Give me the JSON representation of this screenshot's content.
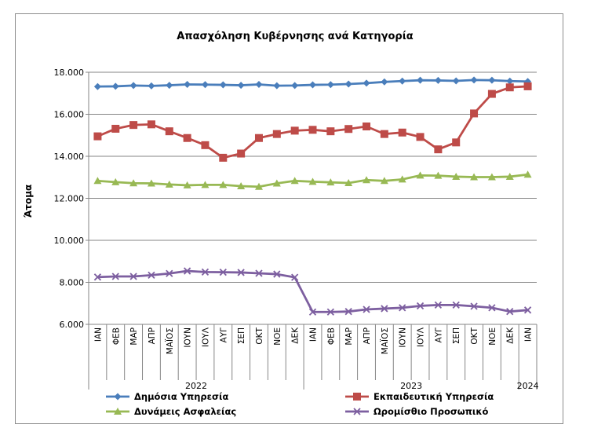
{
  "chart_data": {
    "type": "line",
    "title": "Απασχόληση Κυβέρνησης ανά Κατηγορία",
    "ylabel": "Άτομα",
    "xlabel": "",
    "ylim": [
      6000,
      18000
    ],
    "yticks": [
      6000,
      8000,
      10000,
      12000,
      14000,
      16000,
      18000
    ],
    "ytick_labels": [
      "6.000",
      "8.000",
      "10.000",
      "12.000",
      "14.000",
      "16.000",
      "18.000"
    ],
    "categories": [
      "ΙΑΝ",
      "ΦΕΒ",
      "ΜΑΡ",
      "ΑΠΡ",
      "ΜΑΪΟΣ",
      "ΙΟΥΝ",
      "ΙΟΥΛ",
      "ΑΥΓ",
      "ΣΕΠ",
      "ΟΚΤ",
      "ΝΟΕ",
      "ΔΕΚ",
      "ΙΑΝ",
      "ΦΕΒ",
      "ΜΑΡ",
      "ΑΠΡ",
      "ΜΑΪΟΣ",
      "ΙΟΥΝ",
      "ΙΟΥΛ",
      "ΑΥΓ",
      "ΣΕΠ",
      "ΟΚΤ",
      "ΝΟΕ",
      "ΔΕΚ",
      "ΙΑΝ"
    ],
    "years": [
      {
        "label": "2022",
        "count": 12
      },
      {
        "label": "2023",
        "count": 12
      },
      {
        "label": "2024",
        "count": 1
      }
    ],
    "legend_position": "bottom",
    "grid": true,
    "series": [
      {
        "name": "Δημόσια Υπηρεσία",
        "color": "#4a7ebb",
        "marker": "diamond",
        "values": [
          17320,
          17330,
          17370,
          17350,
          17380,
          17420,
          17410,
          17400,
          17380,
          17420,
          17360,
          17370,
          17400,
          17410,
          17440,
          17480,
          17540,
          17580,
          17620,
          17610,
          17590,
          17630,
          17620,
          17580,
          17560
        ]
      },
      {
        "name": "Εκπαιδευτική Υπηρεσία",
        "color": "#be4b48",
        "marker": "square",
        "values": [
          14950,
          15310,
          15490,
          15520,
          15190,
          14870,
          14530,
          13930,
          14130,
          14870,
          15060,
          15220,
          15260,
          15190,
          15300,
          15420,
          15060,
          15130,
          14920,
          14330,
          14660,
          16040,
          16970,
          17280,
          17330
        ]
      },
      {
        "name": "Δυνάμεις Ασφαλείας",
        "color": "#98b954",
        "marker": "triangle",
        "values": [
          12830,
          12770,
          12720,
          12710,
          12660,
          12620,
          12640,
          12640,
          12580,
          12550,
          12710,
          12830,
          12790,
          12760,
          12730,
          12870,
          12830,
          12900,
          13090,
          13080,
          13030,
          13010,
          13010,
          13030,
          13130
        ]
      },
      {
        "name": "Ωρομίσθιο Προσωπικό",
        "color": "#7d5fa0",
        "marker": "x",
        "values": [
          8250,
          8280,
          8280,
          8340,
          8420,
          8540,
          8490,
          8480,
          8470,
          8430,
          8390,
          8240,
          6590,
          6590,
          6610,
          6710,
          6750,
          6790,
          6880,
          6920,
          6920,
          6860,
          6790,
          6610,
          6680
        ]
      }
    ]
  }
}
